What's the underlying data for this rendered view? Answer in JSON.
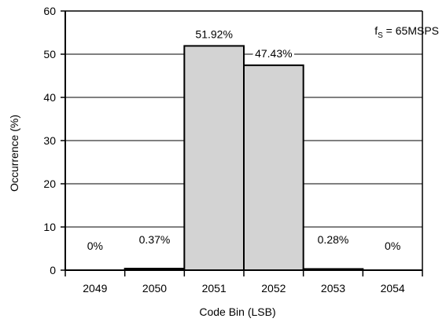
{
  "chart_data": {
    "type": "bar",
    "categories": [
      "2049",
      "2050",
      "2051",
      "2052",
      "2053",
      "2054"
    ],
    "values": [
      0,
      0.37,
      51.92,
      47.43,
      0.28,
      0
    ],
    "data_labels": [
      "0%",
      "0.37%",
      "51.92%",
      "47.43%",
      "0.28%",
      "0%"
    ],
    "xlabel": "Code Bin (LSB)",
    "ylabel": "Occurrence (%)",
    "ylim": [
      0,
      60
    ],
    "yticks": [
      "0",
      "10",
      "20",
      "30",
      "40",
      "50",
      "60"
    ],
    "grid": "horizontal",
    "annotation": {
      "prefix": "f",
      "subscript": "S",
      "suffix": " = 65MSPS"
    },
    "colors": {
      "bar_fill": "#d3d3d3",
      "bar_stroke": "#000000",
      "grid": "#000000"
    }
  }
}
